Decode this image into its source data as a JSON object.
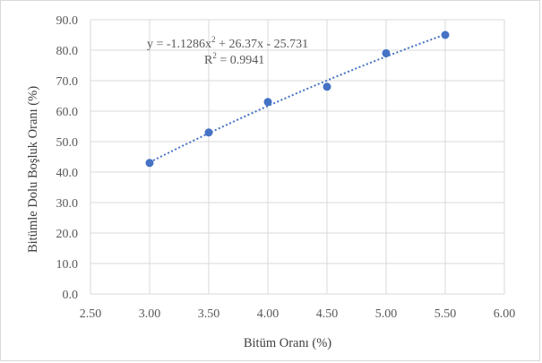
{
  "chart_data": {
    "type": "scatter",
    "xlabel": "Bitüm Oranı (%)",
    "ylabel": "Bitümle Dolu Boşluk Oranı (%)",
    "xlim": [
      2.5,
      6.0
    ],
    "ylim": [
      0,
      90
    ],
    "x_ticks": [
      "2.50",
      "3.00",
      "3.50",
      "4.00",
      "4.50",
      "5.00",
      "5.50",
      "6.00"
    ],
    "y_ticks": [
      "0.0",
      "10.0",
      "20.0",
      "30.0",
      "40.0",
      "50.0",
      "60.0",
      "70.0",
      "80.0",
      "90.0"
    ],
    "grid": true,
    "series": [
      {
        "x": [
          3.0,
          3.5,
          4.0,
          4.5,
          5.0,
          5.5
        ],
        "y": [
          43,
          53,
          63,
          68,
          79,
          85
        ],
        "color": "#4472c4"
      }
    ],
    "trendline": {
      "type": "polynomial",
      "order": 2,
      "coefficients": [
        -1.1286,
        26.37,
        -25.731
      ],
      "color": "#4472c4",
      "style": "dotted"
    },
    "annotations": {
      "equation_prefix": "y = -1.1286x",
      "equation_suffix": " + 26.37x - 25.731",
      "r2_label": "R",
      "r2_value": " = 0.9941",
      "superscript": "2"
    }
  }
}
